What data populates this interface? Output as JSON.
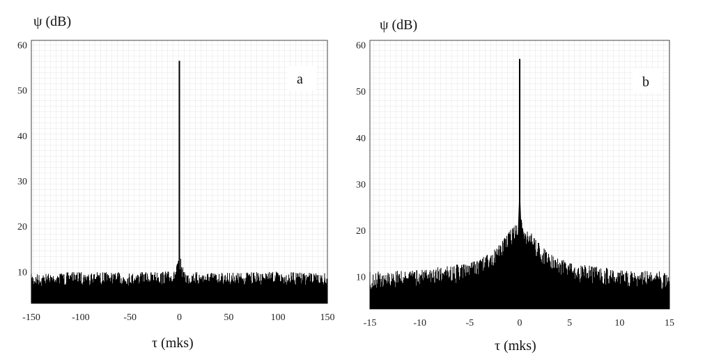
{
  "chart_data": [
    {
      "panel": "a",
      "type": "line",
      "title": "",
      "xlabel": "τ (mks)",
      "ylabel": "ψ (dB)",
      "xlim": [
        -150,
        150
      ],
      "ylim": [
        3,
        61
      ],
      "xticks": [
        -150,
        -100,
        -50,
        0,
        50,
        100,
        150
      ],
      "yticks": [
        10,
        20,
        30,
        40,
        50,
        60
      ],
      "grid": true,
      "series": [
        {
          "description": "dense noise floor ~7-12 dB, single narrow peak at tau=0",
          "noise_floor_min": 4,
          "noise_floor_max": 11.5,
          "peak": {
            "x": 0,
            "y": 56.5
          },
          "points": [
            [
              -150,
              9.5
            ],
            [
              -100,
              10
            ],
            [
              -50,
              9.8
            ],
            [
              -5,
              10.2
            ],
            [
              -2,
              12
            ],
            [
              -1,
              14
            ],
            [
              0,
              56.5
            ],
            [
              1,
              14
            ],
            [
              2,
              12
            ],
            [
              5,
              10
            ],
            [
              50,
              9.8
            ],
            [
              100,
              10
            ],
            [
              150,
              9.6
            ]
          ]
        }
      ],
      "annotation": "a"
    },
    {
      "panel": "b",
      "type": "line",
      "title": "",
      "xlabel": "τ (mks)",
      "ylabel": "ψ (dB)",
      "xlim": [
        -15,
        15
      ],
      "ylim": [
        3,
        61
      ],
      "xticks": [
        -15,
        -10,
        -5,
        0,
        5,
        10,
        15
      ],
      "yticks": [
        10,
        20,
        30,
        40,
        50,
        60
      ],
      "grid": true,
      "series": [
        {
          "description": "noise floor ~9-14 dB rising toward center, main peak at tau=0",
          "noise_floor_min": 4,
          "noise_floor_max": 13,
          "peak": {
            "x": 0,
            "y": 57
          },
          "points": [
            [
              -15,
              11
            ],
            [
              -10,
              11.5
            ],
            [
              -5,
              13
            ],
            [
              -3,
              15
            ],
            [
              -2,
              17
            ],
            [
              -1,
              20
            ],
            [
              -0.3,
              25
            ],
            [
              0,
              57
            ],
            [
              0.3,
              25
            ],
            [
              1,
              20
            ],
            [
              2,
              17
            ],
            [
              3,
              15
            ],
            [
              5,
              13
            ],
            [
              10,
              11.5
            ],
            [
              15,
              11
            ]
          ]
        }
      ],
      "annotation": "b"
    }
  ]
}
